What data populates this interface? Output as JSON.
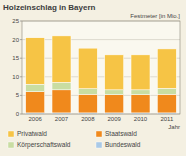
{
  "chart_data": {
    "type": "bar",
    "title": "Holzeinschlag in Bayern",
    "y_label": "Festmeter [in Mio.]",
    "x_label": "Jahr",
    "categories": [
      "2006",
      "2007",
      "2008",
      "2009",
      "2010",
      "2011"
    ],
    "stacked": true,
    "grid": true,
    "legend": "bottom",
    "ylim": [
      0,
      25
    ],
    "yticks": [
      0,
      5,
      10,
      15,
      20,
      25
    ],
    "series": [
      {
        "name": "Bundeswald",
        "color": "#a9c9e6",
        "values": [
          0.3,
          0.3,
          0.3,
          0.3,
          0.3,
          0.3
        ]
      },
      {
        "name": "Staatswald",
        "color": "#f0891c",
        "values": [
          5.7,
          6.2,
          5.0,
          4.9,
          4.9,
          5.0
        ]
      },
      {
        "name": "Körperschaftswald",
        "color": "#c9dda2",
        "values": [
          2.0,
          2.0,
          1.5,
          1.3,
          1.3,
          1.6
        ]
      },
      {
        "name": "Privatwald",
        "color": "#f6c445",
        "values": [
          12.5,
          12.5,
          10.9,
          9.4,
          9.4,
          10.6
        ]
      }
    ]
  }
}
